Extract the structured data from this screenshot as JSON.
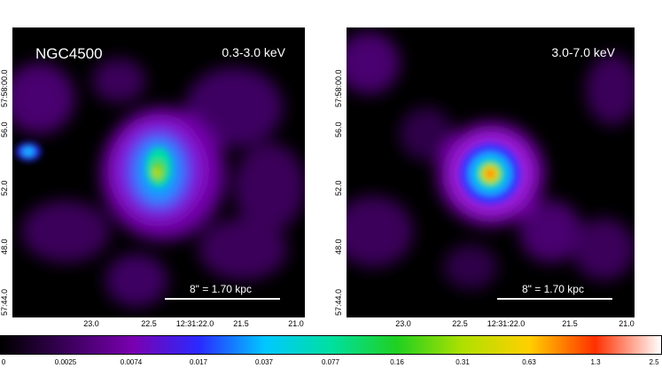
{
  "panels": [
    {
      "object_label": "NGC4500",
      "band_label": "0.3-3.0 keV",
      "scalebar_label": "8\" = 1.70 kpc",
      "dec_ticks": [
        "57:58:00.0",
        "56.0",
        "52.0",
        "48.0",
        "57:44.0"
      ],
      "ra_ticks": [
        "23.0",
        "22.5",
        "12:31:22.0",
        "21.5",
        "21.0"
      ]
    },
    {
      "object_label": "",
      "band_label": "3.0-7.0 keV",
      "scalebar_label": "8\" = 1.70 kpc",
      "dec_ticks": [
        "57:58:00.0",
        "56.0",
        "52.0",
        "48.0",
        "57:44.0"
      ],
      "ra_ticks": [
        "23.0",
        "22.5",
        "12:31:22.0",
        "21.5",
        "21.0"
      ]
    }
  ],
  "colorbar": {
    "ticks": [
      "0",
      "0.0025",
      "0.0074",
      "0.017",
      "0.037",
      "0.077",
      "0.16",
      "0.31",
      "0.63",
      "1.3",
      "2.5"
    ],
    "colors": [
      "#000000",
      "#3a005a",
      "#7a00b0",
      "#2a2aff",
      "#00c8ff",
      "#00e0a0",
      "#20d020",
      "#b0e000",
      "#ffd000",
      "#ff3000",
      "#ffffff"
    ]
  }
}
